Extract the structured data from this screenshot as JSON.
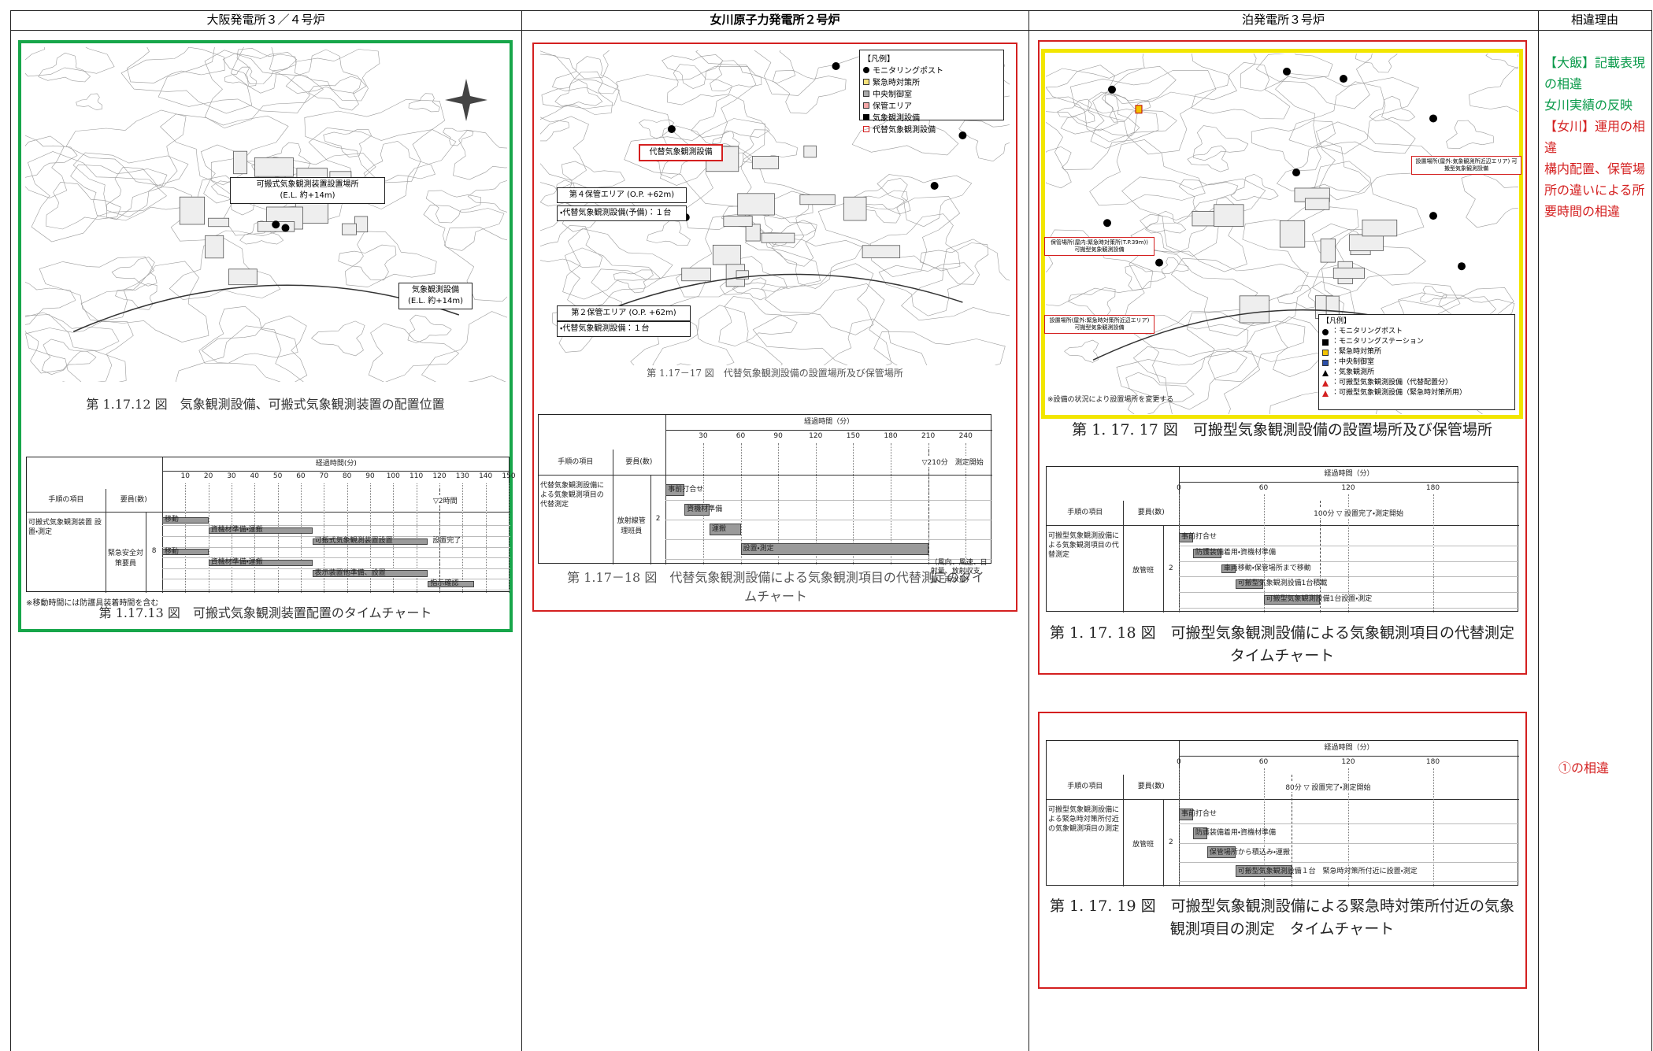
{
  "header": {
    "columns": [
      "大阪発電所３／４号炉",
      "女川原子力発電所２号炉",
      "泊発電所３号炉",
      "相違理由"
    ]
  },
  "ohi": {
    "labels": {
      "portable": "可搬式気象観測装置設置場所",
      "portable_el": "(E.L. 約+14m)",
      "fixed": "気象観測設備",
      "fixed_el": "(E.L. 約+14m)"
    },
    "fig_map": "第 1.17.12 図　気象観測設備、可搬式気象観測装置の配置位置",
    "chart": {
      "title": "経過時間(分)",
      "headers": [
        "手順の項目",
        "要員(数)"
      ],
      "task": "可搬式気象観測装置 設置・測定",
      "staff": "緊急安全対策要員",
      "count": 8,
      "xlim": [
        0,
        150
      ],
      "xticks": [
        10,
        20,
        30,
        40,
        50,
        60,
        70,
        80,
        90,
        100,
        110,
        120,
        130,
        140,
        150
      ],
      "milestone": {
        "value": 120,
        "label": "▽2時間"
      },
      "bars": [
        {
          "label": "移動",
          "start": 0,
          "end": 20
        },
        {
          "label": "資機材準備・運搬",
          "start": 20,
          "end": 65
        },
        {
          "label": "可搬式気象観測装置設置",
          "start": 65,
          "end": 115
        },
        {
          "label": "移動",
          "start": 0,
          "end": 20
        },
        {
          "label": "資機材準備・運搬",
          "start": 20,
          "end": 65
        },
        {
          "label": "表示装置他準備、設置",
          "start": 65,
          "end": 115
        },
        {
          "label": "指示確認",
          "start": 115,
          "end": 135
        }
      ],
      "side_note": "設置完了"
    },
    "note": "※移動時間には防護具装着時間を含む",
    "fig_chart": "第 1.17.13 図　可搬式気象観測装置配置のタイムチャート"
  },
  "onagawa": {
    "legend": {
      "title": "【凡例】",
      "items": [
        "モニタリングポスト",
        "緊急時対策所",
        "中央制御室",
        "保管エリア",
        "気象観測設備",
        "代替気象観測設備"
      ]
    },
    "labels": {
      "alt_equipment": "代替気象観測設備",
      "area4": "第４保管エリア (O.P. +62m)",
      "area4_item": "・代替気象観測設備(予備)：１台",
      "area2": "第２保管エリア (O.P. +62m)",
      "area2_item": "・代替気象観測設備：１台"
    },
    "fig_map": "第 1.17－17 図　代替気象観測設備の設置場所及び保管場所",
    "chart": {
      "title": "経過時間（分）",
      "headers": [
        "手順の項目",
        "要員(数)"
      ],
      "task": "代替気象観測設備による気象観測項目の代替測定",
      "staff": "放射線管理班員",
      "count": 2,
      "xlim": [
        0,
        260
      ],
      "xticks": [
        30,
        60,
        90,
        120,
        150,
        180,
        210,
        240
      ],
      "milestone": {
        "value": 210,
        "label": "▽210分　測定開始"
      },
      "bars": [
        {
          "label": "事前打合せ",
          "start": 0,
          "end": 15
        },
        {
          "label": "資機材準備",
          "start": 15,
          "end": 35
        },
        {
          "label": "運搬",
          "start": 35,
          "end": 60
        },
        {
          "label": "設置・測定",
          "start": 60,
          "end": 210
        }
      ],
      "end_note": "（風向、風速、日射量、放射収支量、雨水量）"
    },
    "fig_chart": "第 1.17－18 図　代替気象観測設備による気象観測項目の代替測定のタイムチャート"
  },
  "tomari": {
    "legend": {
      "title": "【凡例】",
      "items": [
        "：モニタリングポスト",
        "：モニタリングステーション",
        "：緊急時対策所",
        "：中央制御室",
        "：気象観測所",
        "：可搬型気象観測設備（代替配置分）",
        "：可搬型気象観測設備（緊急時対策所用）"
      ]
    },
    "labels": {
      "site_outdoor": "設置場所(屋外:気象観測所近辺エリア) 可搬型気象観測設備",
      "storage": "保管場所(屋内:緊急時対策所(T.P.39m)) 可搬型気象観測設備",
      "site_ec": "設置場所(屋外:緊急時対策所近辺エリア) 可搬型気象観測設備",
      "note": "※設備の状況により設置場所を変更する"
    },
    "fig_map": "第 1. 17. 17 図　可搬型気象観測設備の設置場所及び保管場所",
    "chart1": {
      "title": "経過時間（分）",
      "headers": [
        "手順の項目",
        "要員(数)"
      ],
      "task": "可搬型気象観測設備による気象観測項目の代替測定",
      "staff": "放管班",
      "count": 2,
      "xlim": [
        0,
        240
      ],
      "xticks": [
        0,
        60,
        120,
        180
      ],
      "milestone": {
        "value": 100,
        "label": "100分 ▽ 設置完了・測定開始"
      },
      "bars": [
        {
          "label": "事前打合せ",
          "start": 0,
          "end": 10
        },
        {
          "label": "防護装備着用・資機材準備",
          "start": 10,
          "end": 30
        },
        {
          "label": "車両移動・保管場所まで移動",
          "start": 30,
          "end": 40
        },
        {
          "label": "可搬型気象観測設備1台積載",
          "start": 40,
          "end": 60
        },
        {
          "label": "可搬型気象観測設備1台設置・測定",
          "start": 60,
          "end": 100
        }
      ]
    },
    "fig_chart1": "第 1. 17. 18 図　可搬型気象観測設備による気象観測項目の代替測定タイムチャート",
    "chart2": {
      "title": "経過時間（分）",
      "headers": [
        "手順の項目",
        "要員(数)"
      ],
      "task": "可搬型気象観測設備による緊急時対策所付近の気象観測項目の測定",
      "staff": "放管班",
      "count": 2,
      "xlim": [
        0,
        240
      ],
      "xticks": [
        0,
        60,
        120,
        180
      ],
      "milestone": {
        "value": 80,
        "label": "80分 ▽ 設置完了・測定開始"
      },
      "bars": [
        {
          "label": "事前打合せ",
          "start": 0,
          "end": 10
        },
        {
          "label": "防護装備着用・資機材準備",
          "start": 10,
          "end": 20
        },
        {
          "label": "保管場所から積込み・運搬",
          "start": 20,
          "end": 40
        },
        {
          "label": "可搬型気象観測設備１台　緊急時対策所付近に設置・測定",
          "start": 40,
          "end": 80
        }
      ]
    },
    "fig_chart2": "第 1. 17. 19 図　可搬型気象観測設備による緊急時対策所付近の気象観測項目の測定　タイムチャート"
  },
  "reasons": {
    "items": [
      "【大飯】記載表現の相違",
      "女川実績の反映",
      "【女川】運用の相違",
      "構内配置、保管場所の違いによる所要時間の相違"
    ],
    "second": "①の相違"
  }
}
